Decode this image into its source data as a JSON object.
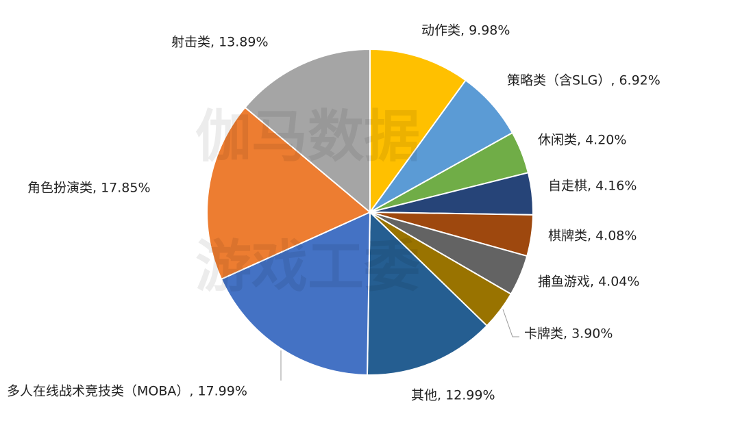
{
  "chart_data": {
    "type": "pie",
    "values": [
      9.98,
      6.92,
      4.2,
      4.16,
      4.08,
      4.04,
      3.9,
      12.99,
      17.99,
      17.85,
      13.89
    ],
    "value_labels": [
      "动作类, 9.98%",
      "策略类（含SLG）, 6.92%",
      "休闲类, 4.20%",
      "自走棋, 4.16%",
      "棋牌类, 4.08%",
      "捕鱼游戏, 4.04%",
      "卡牌类, 3.90%",
      "其他, 12.99%",
      "多人在线战术竞技类（MOBA）, 17.99%",
      "角色扮演类, 17.85%",
      "射击类, 13.89%"
    ],
    "colors": [
      "#ffc000",
      "#5b9bd5",
      "#70ad47",
      "#264478",
      "#9e480e",
      "#636363",
      "#997300",
      "#255e91",
      "#4472c4",
      "#ed7d31",
      "#a5a5a5"
    ],
    "watermark": [
      "伽马数据",
      "游戏工委"
    ]
  }
}
